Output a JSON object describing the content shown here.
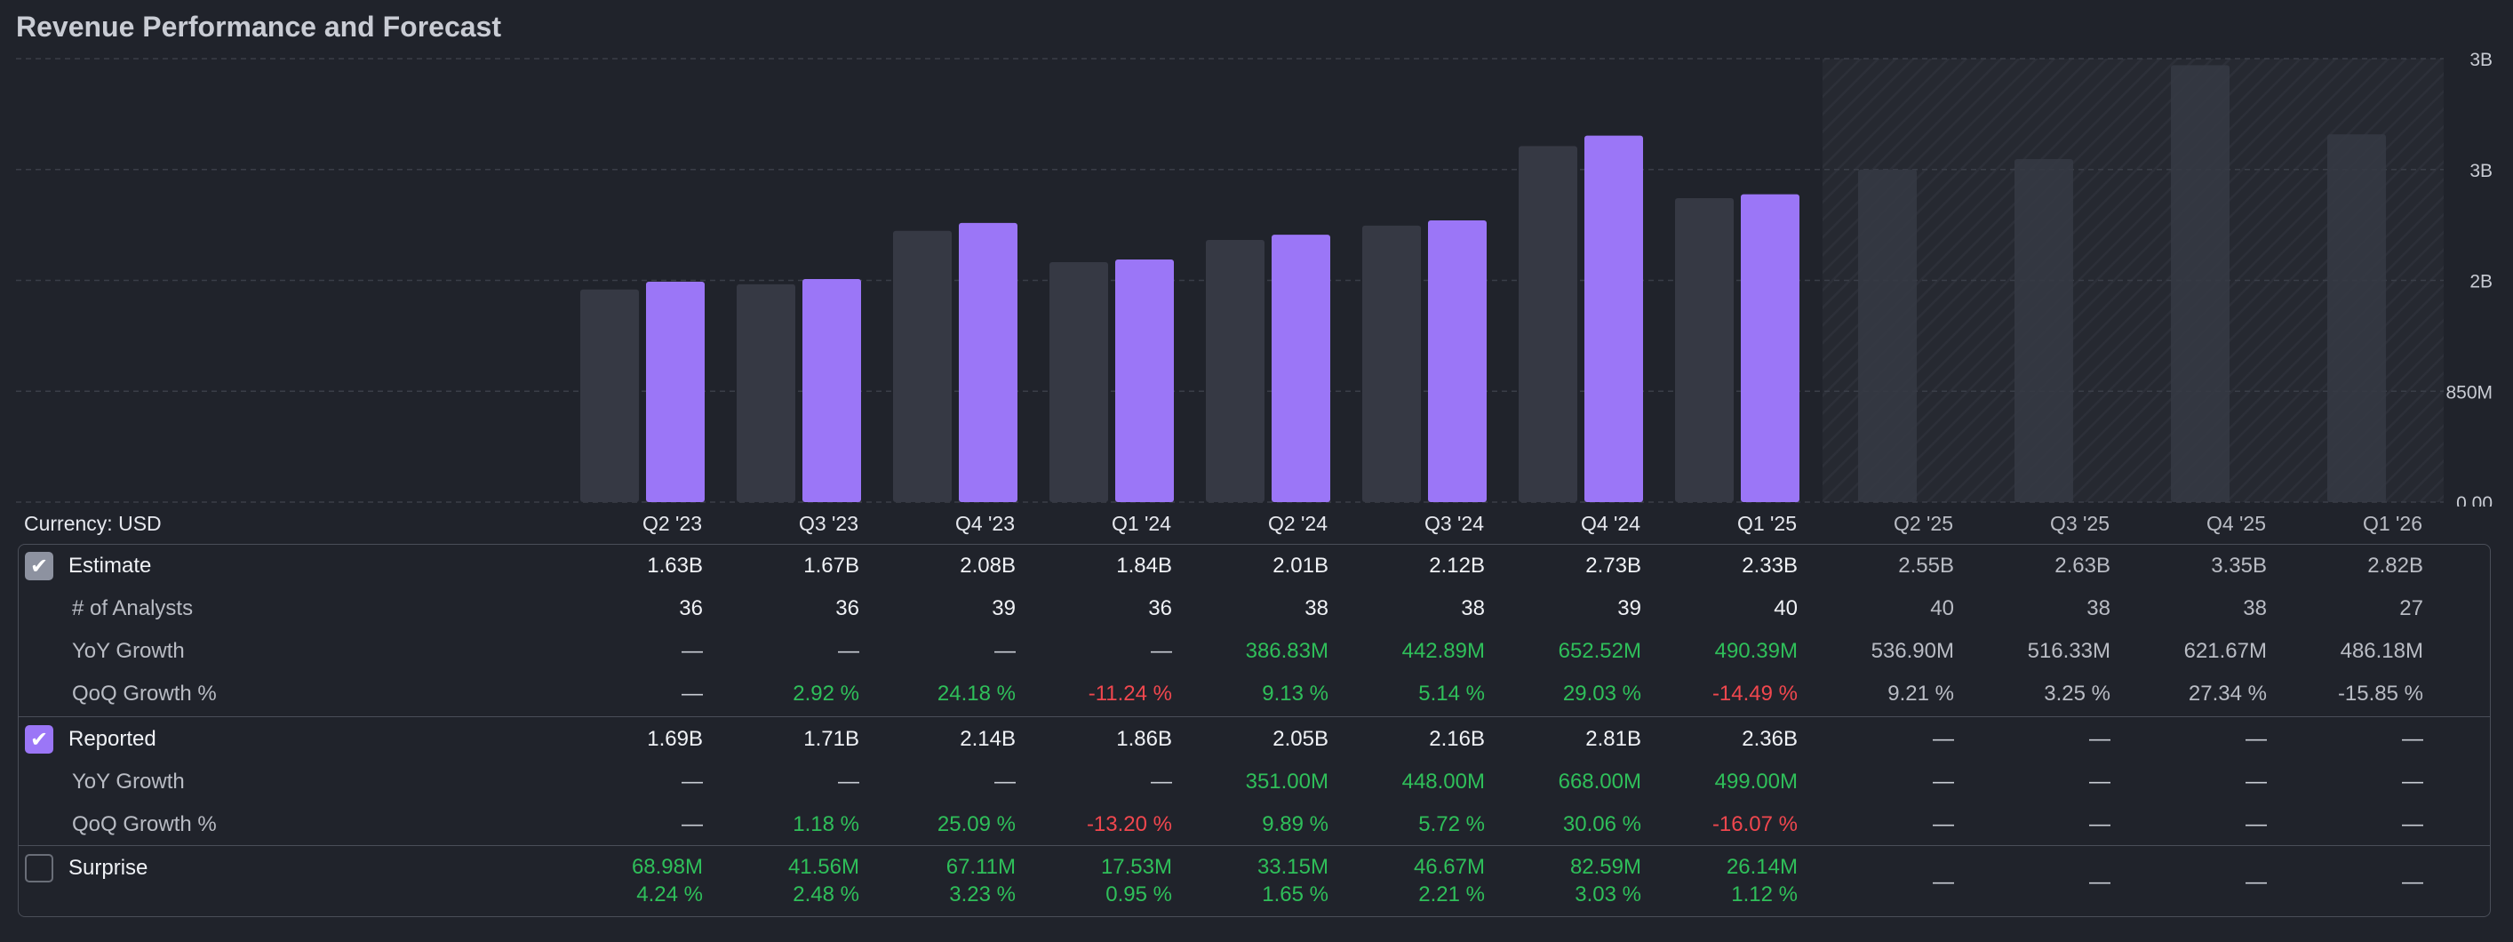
{
  "title": "Revenue Performance and Forecast",
  "currency_label": "Currency: USD",
  "colors": {
    "estimate_bar": "#363944",
    "reported_bar": "#9b76f7",
    "forecast_bar": "#363944",
    "positive": "#2fbf5a",
    "negative": "#f0474e",
    "background": "#20232b"
  },
  "quarters": [
    "Q2 '23",
    "Q3 '23",
    "Q4 '23",
    "Q1 '24",
    "Q2 '24",
    "Q3 '24",
    "Q4 '24",
    "Q1 '25",
    "Q2 '25",
    "Q3 '25",
    "Q4 '25",
    "Q1 '26"
  ],
  "chart_data": {
    "type": "bar",
    "title": "Revenue Performance and Forecast",
    "categories": [
      "Q2 '23",
      "Q3 '23",
      "Q4 '23",
      "Q1 '24",
      "Q2 '24",
      "Q3 '24",
      "Q4 '24",
      "Q1 '25",
      "Q2 '25",
      "Q3 '25",
      "Q4 '25",
      "Q1 '26"
    ],
    "series": [
      {
        "name": "Estimate",
        "values": [
          1.63,
          1.67,
          2.08,
          1.84,
          2.01,
          2.12,
          2.73,
          2.33,
          2.55,
          2.63,
          3.35,
          2.82
        ]
      },
      {
        "name": "Reported",
        "values": [
          1.69,
          1.71,
          2.14,
          1.86,
          2.05,
          2.16,
          2.81,
          2.36,
          null,
          null,
          null,
          null
        ]
      }
    ],
    "units": "B USD",
    "forecast_start_index": 8,
    "y_ticks": [
      {
        "value": 0,
        "label": "0.00"
      },
      {
        "value": 0.85,
        "label": "850M"
      },
      {
        "value": 1.7,
        "label": "2B"
      },
      {
        "value": 2.55,
        "label": "3B"
      },
      {
        "value": 3.4,
        "label": "3B"
      }
    ],
    "ylim": [
      0,
      3.4
    ],
    "grid": true
  },
  "table": {
    "estimate": {
      "label": "Estimate",
      "values": [
        "1.63B",
        "1.67B",
        "2.08B",
        "1.84B",
        "2.01B",
        "2.12B",
        "2.73B",
        "2.33B",
        "2.55B",
        "2.63B",
        "3.35B",
        "2.82B"
      ]
    },
    "analysts": {
      "label": "# of Analysts",
      "values": [
        "36",
        "36",
        "39",
        "36",
        "38",
        "38",
        "39",
        "40",
        "40",
        "38",
        "38",
        "27"
      ]
    },
    "est_yoy": {
      "label": "YoY Growth",
      "values": [
        "—",
        "—",
        "—",
        "—",
        "386.83M",
        "442.89M",
        "652.52M",
        "490.39M",
        "536.90M",
        "516.33M",
        "621.67M",
        "486.18M"
      ]
    },
    "est_qoq": {
      "label": "QoQ Growth %",
      "values": [
        "—",
        "2.92 %",
        "24.18 %",
        "-11.24 %",
        "9.13 %",
        "5.14 %",
        "29.03 %",
        "-14.49 %",
        "9.21 %",
        "3.25 %",
        "27.34 %",
        "-15.85 %"
      ]
    },
    "reported": {
      "label": "Reported",
      "values": [
        "1.69B",
        "1.71B",
        "2.14B",
        "1.86B",
        "2.05B",
        "2.16B",
        "2.81B",
        "2.36B",
        "—",
        "—",
        "—",
        "—"
      ]
    },
    "rep_yoy": {
      "label": "YoY Growth",
      "values": [
        "—",
        "—",
        "—",
        "—",
        "351.00M",
        "448.00M",
        "668.00M",
        "499.00M",
        "—",
        "—",
        "—",
        "—"
      ]
    },
    "rep_qoq": {
      "label": "QoQ Growth %",
      "values": [
        "—",
        "1.18 %",
        "25.09 %",
        "-13.20 %",
        "9.89 %",
        "5.72 %",
        "30.06 %",
        "-16.07 %",
        "—",
        "—",
        "—",
        "—"
      ]
    },
    "surprise": {
      "label": "Surprise",
      "amounts": [
        "68.98M",
        "41.56M",
        "67.11M",
        "17.53M",
        "33.15M",
        "46.67M",
        "82.59M",
        "26.14M",
        "—",
        "—",
        "—",
        "—"
      ],
      "percents": [
        "4.24 %",
        "2.48 %",
        "3.23 %",
        "0.95 %",
        "1.65 %",
        "2.21 %",
        "3.03 %",
        "1.12 %",
        "",
        "",
        "",
        ""
      ]
    }
  }
}
